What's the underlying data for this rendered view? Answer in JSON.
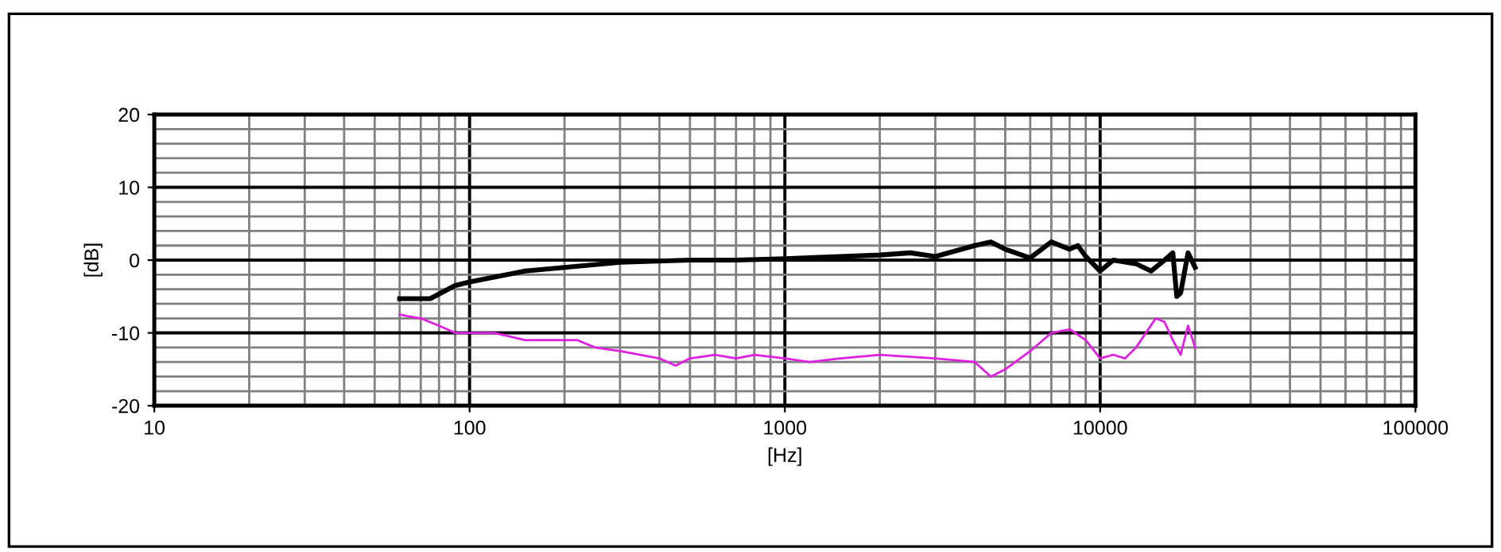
{
  "chart_data": {
    "type": "line",
    "xlabel": "[Hz]",
    "ylabel": "[dB]",
    "log": "x",
    "grid": true,
    "marker": "none",
    "line_style": "solid",
    "xlim": [
      10,
      100000
    ],
    "xticks": [
      10,
      100,
      1000,
      10000,
      100000
    ],
    "ylim": [
      -20,
      20
    ],
    "yticks": [
      -20,
      -10,
      0,
      10,
      20
    ],
    "series": [
      {
        "color": "#000000",
        "x": [
          60,
          75,
          90,
          100,
          150,
          200,
          300,
          500,
          700,
          1000,
          1500,
          2000,
          2500,
          3000,
          4000,
          4500,
          5000,
          6000,
          7000,
          8000,
          8500,
          9000,
          10000,
          11000,
          13000,
          14500,
          16000,
          17000,
          17500,
          18000,
          19000,
          20000
        ],
        "values": [
          -5.3,
          -5.3,
          -3.5,
          -3,
          -1.5,
          -1,
          -0.3,
          0,
          0,
          0.2,
          0.5,
          0.7,
          1,
          0.5,
          2,
          2.5,
          1.5,
          0.3,
          2.5,
          1.5,
          2,
          0.5,
          -1.5,
          0,
          -0.5,
          -1.5,
          0,
          1,
          -5,
          -4.5,
          1,
          -1
        ]
      },
      {
        "color": "#e020e0",
        "x": [
          60,
          70,
          80,
          90,
          120,
          150,
          200,
          220,
          250,
          300,
          400,
          450,
          500,
          600,
          700,
          800,
          1000,
          1200,
          1500,
          2000,
          3000,
          4000,
          4500,
          5000,
          6000,
          7000,
          8000,
          9000,
          10000,
          11000,
          12000,
          13000,
          15000,
          16000,
          17000,
          18000,
          19000,
          20000
        ],
        "values": [
          -7.5,
          -8,
          -9,
          -10,
          -10,
          -11,
          -11,
          -11,
          -12,
          -12.5,
          -13.5,
          -14.5,
          -13.5,
          -13,
          -13.5,
          -13,
          -13.5,
          -14,
          -13.5,
          -13,
          -13.5,
          -14,
          -16,
          -15,
          -12.5,
          -10,
          -9.5,
          -11,
          -13.5,
          -13,
          -13.5,
          -12,
          -8,
          -8.5,
          -11,
          -13,
          -9,
          -12
        ]
      }
    ]
  }
}
